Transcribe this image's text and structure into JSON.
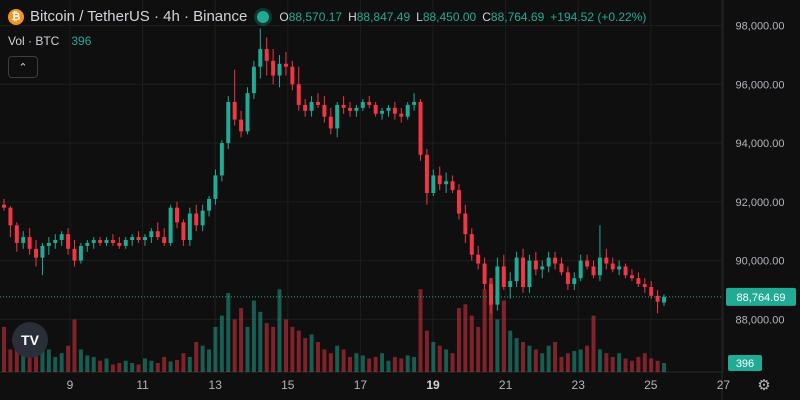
{
  "header": {
    "symbol_title": "Bitcoin / TetherUS · 4h · Binance",
    "logo_glyph": "₿",
    "open_label": "O",
    "open": "88,570.17",
    "high_label": "H",
    "high": "88,847.49",
    "low_label": "L",
    "low": "88,450.00",
    "close_label": "C",
    "close": "88,764.69",
    "change": "+194.52 (+0.22%)"
  },
  "volume": {
    "label": "Vol · BTC",
    "value": "396",
    "badge": "396"
  },
  "collapse_icon": "chevron-up-icon",
  "tv_logo_text": "TV",
  "colors": {
    "up": "#22ab94",
    "down": "#f23645",
    "bg": "#0f0f0f",
    "grid": "#1e1e1e",
    "price_line": "#22ab94"
  },
  "chart_data": {
    "type": "candlestick",
    "price_axis": {
      "ticks": [
        "98,000.00",
        "96,000.00",
        "94,000.00",
        "92,000.00",
        "90,000.00",
        "88,000.00"
      ],
      "tick_values": [
        98000,
        96000,
        94000,
        92000,
        90000,
        88000
      ],
      "range": [
        87200,
        98600
      ]
    },
    "time_axis": {
      "ticks": [
        "9",
        "11",
        "13",
        "15",
        "17",
        "19",
        "21",
        "23",
        "25",
        "27"
      ],
      "bold": [
        "19"
      ]
    },
    "last_price": {
      "value": 88764.69,
      "label": "88,764.69"
    },
    "grid": true,
    "candles": [
      [
        91900,
        92100,
        91700,
        91800
      ],
      [
        91800,
        91850,
        90800,
        91200
      ],
      [
        91200,
        91300,
        90300,
        90600
      ],
      [
        90600,
        91000,
        90400,
        90800
      ],
      [
        90800,
        91100,
        90200,
        90400
      ],
      [
        90400,
        90700,
        89800,
        90100
      ],
      [
        90100,
        90600,
        89500,
        90500
      ],
      [
        90500,
        90800,
        90200,
        90600
      ],
      [
        90600,
        90900,
        90400,
        90700
      ],
      [
        90700,
        91000,
        90500,
        90900
      ],
      [
        90900,
        91100,
        90200,
        90400
      ],
      [
        90400,
        90700,
        89800,
        90000
      ],
      [
        90000,
        90600,
        89900,
        90500
      ],
      [
        90500,
        90700,
        90300,
        90600
      ],
      [
        90600,
        90800,
        90400,
        90700
      ],
      [
        90700,
        90800,
        90500,
        90600
      ],
      [
        90600,
        90800,
        90500,
        90700
      ],
      [
        90700,
        90900,
        90500,
        90600
      ],
      [
        90600,
        90800,
        90400,
        90500
      ],
      [
        90500,
        90800,
        90400,
        90700
      ],
      [
        90700,
        90900,
        90500,
        90800
      ],
      [
        90800,
        91000,
        90600,
        90700
      ],
      [
        90700,
        90900,
        90500,
        90800
      ],
      [
        90800,
        91100,
        90600,
        91000
      ],
      [
        91000,
        91300,
        90700,
        90800
      ],
      [
        90800,
        91100,
        90500,
        90600
      ],
      [
        90600,
        91900,
        90500,
        91800
      ],
      [
        91800,
        92000,
        91100,
        91300
      ],
      [
        91300,
        91400,
        90500,
        90700
      ],
      [
        90700,
        91800,
        90500,
        91600
      ],
      [
        91600,
        91900,
        91000,
        91200
      ],
      [
        91200,
        91900,
        91000,
        91700
      ],
      [
        91700,
        92200,
        91500,
        92100
      ],
      [
        92100,
        93100,
        91900,
        92900
      ],
      [
        92900,
        94100,
        92700,
        94000
      ],
      [
        94000,
        95600,
        93800,
        95400
      ],
      [
        95400,
        96500,
        94600,
        94800
      ],
      [
        94800,
        95100,
        94200,
        94400
      ],
      [
        94400,
        95900,
        94300,
        95700
      ],
      [
        95700,
        96800,
        95500,
        96600
      ],
      [
        96600,
        97900,
        96200,
        97200
      ],
      [
        97200,
        97600,
        96300,
        96800
      ],
      [
        96800,
        97200,
        96000,
        96300
      ],
      [
        96300,
        97000,
        95900,
        96700
      ],
      [
        96700,
        97100,
        96300,
        96600
      ],
      [
        96600,
        96800,
        95800,
        96000
      ],
      [
        96000,
        96600,
        95100,
        95300
      ],
      [
        95300,
        95500,
        94900,
        95100
      ],
      [
        95100,
        95600,
        94900,
        95400
      ],
      [
        95400,
        95700,
        95200,
        95300
      ],
      [
        95300,
        95600,
        94700,
        94900
      ],
      [
        94900,
        95200,
        94300,
        94500
      ],
      [
        94500,
        95400,
        94200,
        95300
      ],
      [
        95300,
        95600,
        95000,
        95200
      ],
      [
        95200,
        95400,
        94900,
        95100
      ],
      [
        95100,
        95300,
        94900,
        95200
      ],
      [
        95200,
        95500,
        95100,
        95400
      ],
      [
        95400,
        95600,
        95200,
        95300
      ],
      [
        95300,
        95400,
        94900,
        95000
      ],
      [
        95000,
        95200,
        94800,
        95100
      ],
      [
        95100,
        95300,
        94900,
        95200
      ],
      [
        95200,
        95400,
        94800,
        95000
      ],
      [
        95000,
        95200,
        94700,
        94900
      ],
      [
        94900,
        95400,
        94800,
        95300
      ],
      [
        95300,
        95700,
        95100,
        95400
      ],
      [
        95400,
        95500,
        93400,
        93600
      ],
      [
        93600,
        93800,
        91900,
        92300
      ],
      [
        92300,
        93100,
        92200,
        92900
      ],
      [
        92900,
        93200,
        92400,
        92600
      ],
      [
        92600,
        93000,
        92300,
        92700
      ],
      [
        92700,
        92900,
        92300,
        92400
      ],
      [
        92400,
        92600,
        91400,
        91600
      ],
      [
        91600,
        91900,
        90600,
        90900
      ],
      [
        90900,
        91100,
        90000,
        90200
      ],
      [
        90200,
        90500,
        89700,
        89900
      ],
      [
        89900,
        90100,
        89000,
        89200
      ],
      [
        89200,
        89400,
        88200,
        88500
      ],
      [
        88500,
        90100,
        88300,
        89800
      ],
      [
        89800,
        90200,
        89000,
        89100
      ],
      [
        89100,
        89600,
        88700,
        89300
      ],
      [
        89300,
        90300,
        89100,
        90100
      ],
      [
        90100,
        90400,
        88900,
        89100
      ],
      [
        89100,
        90200,
        88900,
        90000
      ],
      [
        90000,
        90300,
        89500,
        89700
      ],
      [
        89700,
        90000,
        89400,
        89800
      ],
      [
        89800,
        90300,
        89600,
        90100
      ],
      [
        90100,
        90300,
        89700,
        89900
      ],
      [
        89900,
        90100,
        89500,
        89600
      ],
      [
        89600,
        89800,
        89000,
        89200
      ],
      [
        89200,
        89600,
        89000,
        89400
      ],
      [
        89400,
        90200,
        89300,
        90000
      ],
      [
        90000,
        90200,
        89700,
        89800
      ],
      [
        89800,
        90000,
        89400,
        89500
      ],
      [
        89500,
        91200,
        89300,
        90100
      ],
      [
        90100,
        90400,
        89700,
        89900
      ],
      [
        89900,
        90100,
        89600,
        89700
      ],
      [
        89700,
        90000,
        89500,
        89800
      ],
      [
        89800,
        89900,
        89400,
        89500
      ],
      [
        89500,
        89700,
        89300,
        89400
      ],
      [
        89400,
        89600,
        89100,
        89200
      ],
      [
        89200,
        89400,
        88900,
        89100
      ],
      [
        89100,
        89300,
        88700,
        88800
      ],
      [
        88800,
        89000,
        88200,
        88600
      ],
      [
        88570,
        88847,
        88450,
        88765
      ]
    ],
    "volumes": [
      60,
      30,
      45,
      40,
      50,
      35,
      55,
      30,
      20,
      25,
      35,
      70,
      30,
      22,
      20,
      15,
      18,
      10,
      12,
      15,
      12,
      10,
      18,
      15,
      12,
      20,
      14,
      16,
      25,
      20,
      40,
      35,
      30,
      60,
      75,
      105,
      70,
      85,
      60,
      95,
      80,
      65,
      60,
      110,
      70,
      60,
      55,
      45,
      50,
      40,
      30,
      25,
      35,
      30,
      20,
      25,
      22,
      18,
      20,
      25,
      15,
      20,
      18,
      22,
      20,
      110,
      55,
      40,
      35,
      30,
      25,
      85,
      90,
      75,
      60,
      110,
      125,
      70,
      95,
      55,
      45,
      40,
      35,
      30,
      25,
      35,
      40,
      20,
      25,
      28,
      30,
      35,
      75,
      30,
      25,
      20,
      25,
      18,
      15,
      20,
      25,
      18,
      15,
      12
    ]
  }
}
